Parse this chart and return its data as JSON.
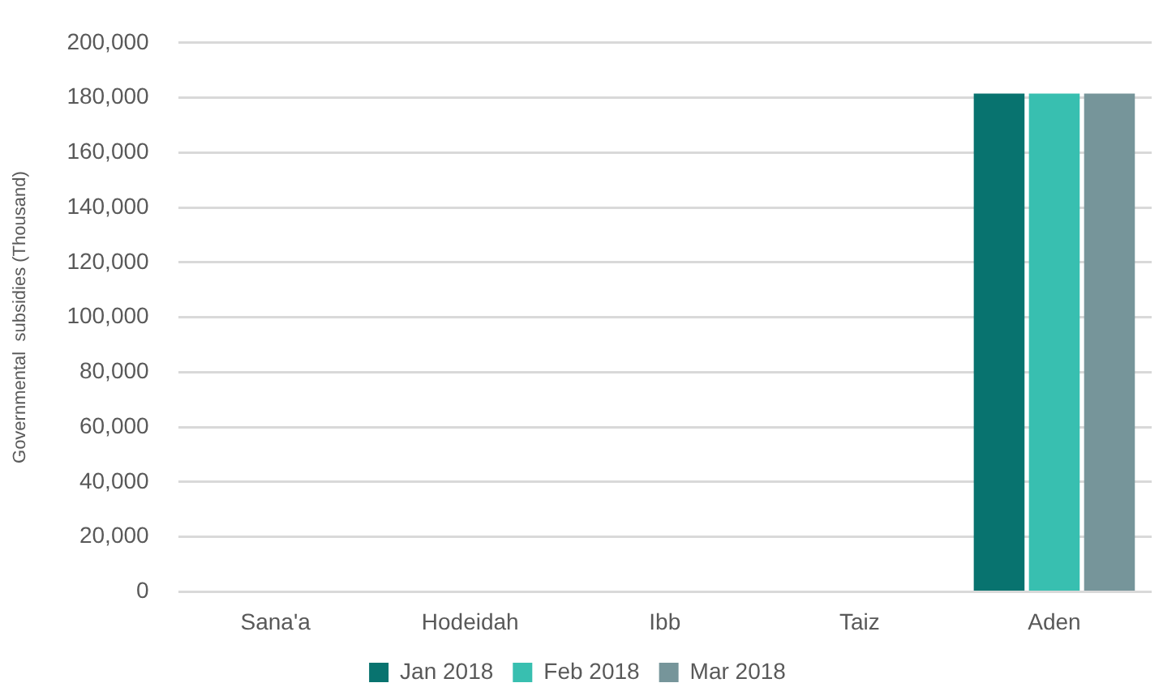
{
  "chart_data": {
    "type": "bar",
    "ylabel": "Governmental  subsidies (Thousand)",
    "categories": [
      "Sana'a",
      "Hodeidah",
      "Ibb",
      "Taiz",
      "Aden"
    ],
    "series": [
      {
        "name": "Jan 2018",
        "color": "#08736f",
        "values": [
          0,
          0,
          0,
          0,
          181500
        ]
      },
      {
        "name": "Feb 2018",
        "color": "#38bfb0",
        "values": [
          0,
          0,
          0,
          0,
          181500
        ]
      },
      {
        "name": "Mar 2018",
        "color": "#76959a",
        "values": [
          0,
          0,
          0,
          0,
          181500
        ]
      }
    ],
    "ylim": [
      0,
      200000
    ],
    "yticks": [
      0,
      {
        "value": 20000,
        "label": "20,000"
      },
      {
        "value": 40000,
        "label": "40,000"
      },
      {
        "value": 60000,
        "label": "60,000"
      },
      {
        "value": 80000,
        "label": "80,000"
      },
      {
        "value": 100000,
        "label": "100,000"
      },
      {
        "value": 120000,
        "label": "120,000"
      },
      {
        "value": 140000,
        "label": "140,000"
      },
      {
        "value": 160000,
        "label": "160,000"
      },
      {
        "value": 180000,
        "label": "180,000"
      },
      {
        "value": 200000,
        "label": "200,000"
      }
    ],
    "grid": "y",
    "legend": "bottom"
  }
}
